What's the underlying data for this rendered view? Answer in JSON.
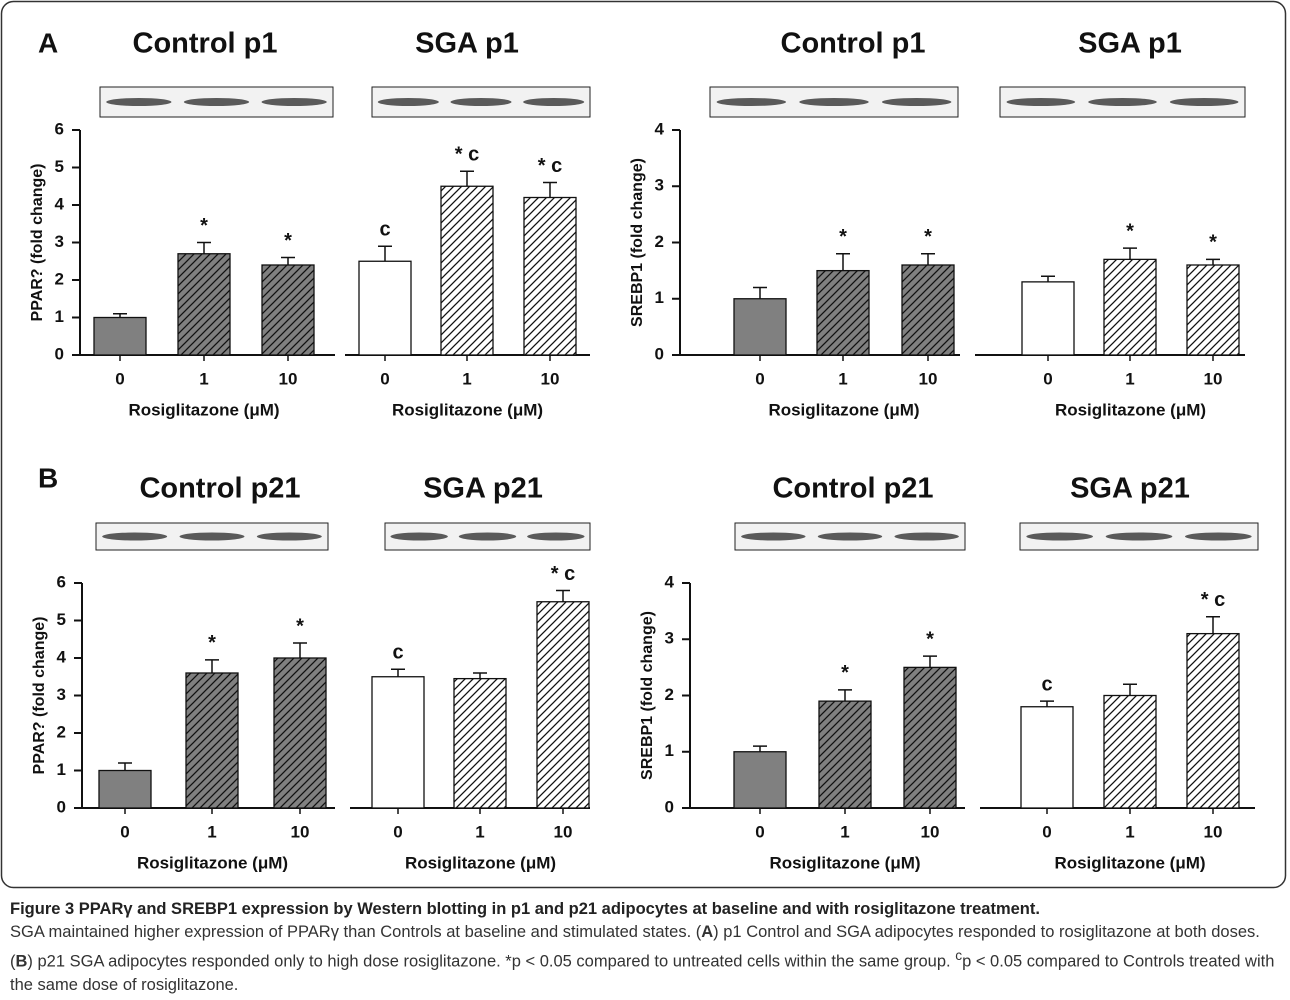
{
  "panels": [
    "A",
    "B"
  ],
  "chart_data": [
    {
      "type": "bar",
      "title": "Control p1",
      "ylabel": "PPAR? (fold change)",
      "xlabel": "Rosiglitazone (μM)",
      "categories": [
        "0",
        "1",
        "10"
      ],
      "values": [
        1.0,
        2.7,
        2.4
      ],
      "errors": [
        0.1,
        0.3,
        0.2
      ],
      "annotations": [
        null,
        "*",
        "*"
      ],
      "colors": [
        "#808080",
        "#808080",
        "#808080"
      ],
      "hatch": [
        false,
        true,
        true
      ],
      "ylim": [
        0,
        6
      ],
      "yticks": [
        0,
        1,
        2,
        3,
        4,
        5,
        6
      ]
    },
    {
      "type": "bar",
      "title": "SGA p1",
      "xlabel": "Rosiglitazone (μM)",
      "categories": [
        "0",
        "1",
        "10"
      ],
      "values": [
        2.5,
        4.5,
        4.2
      ],
      "errors": [
        0.4,
        0.4,
        0.4
      ],
      "annotations": [
        "c",
        "* c",
        "* c"
      ],
      "colors": [
        "#ffffff",
        "#ffffff",
        "#ffffff"
      ],
      "hatch": [
        false,
        true,
        true
      ],
      "ylim": [
        0,
        6
      ]
    },
    {
      "type": "bar",
      "title": "Control p1",
      "ylabel": "SREBP1 (fold change)",
      "xlabel": "Rosiglitazone (μM)",
      "categories": [
        "0",
        "1",
        "10"
      ],
      "values": [
        1.0,
        1.5,
        1.6
      ],
      "errors": [
        0.2,
        0.3,
        0.2
      ],
      "annotations": [
        null,
        "*",
        "*"
      ],
      "colors": [
        "#808080",
        "#808080",
        "#808080"
      ],
      "hatch": [
        false,
        true,
        true
      ],
      "ylim": [
        0,
        4
      ],
      "yticks": [
        0,
        1,
        2,
        3,
        4
      ]
    },
    {
      "type": "bar",
      "title": "SGA p1",
      "xlabel": "Rosiglitazone (μM)",
      "categories": [
        "0",
        "1",
        "10"
      ],
      "values": [
        1.3,
        1.7,
        1.6
      ],
      "errors": [
        0.1,
        0.2,
        0.1
      ],
      "annotations": [
        null,
        "*",
        "*"
      ],
      "colors": [
        "#ffffff",
        "#ffffff",
        "#ffffff"
      ],
      "hatch": [
        false,
        true,
        true
      ],
      "ylim": [
        0,
        4
      ]
    },
    {
      "type": "bar",
      "title": "Control p21",
      "ylabel": "PPAR? (fold change)",
      "xlabel": "Rosiglitazone (μM)",
      "categories": [
        "0",
        "1",
        "10"
      ],
      "values": [
        1.0,
        3.6,
        4.0
      ],
      "errors": [
        0.2,
        0.35,
        0.4
      ],
      "annotations": [
        null,
        "*",
        "*"
      ],
      "colors": [
        "#808080",
        "#808080",
        "#808080"
      ],
      "hatch": [
        false,
        true,
        true
      ],
      "ylim": [
        0,
        6
      ],
      "yticks": [
        0,
        1,
        2,
        3,
        4,
        5,
        6
      ]
    },
    {
      "type": "bar",
      "title": "SGA p21",
      "xlabel": "Rosiglitazone (μM)",
      "categories": [
        "0",
        "1",
        "10"
      ],
      "values": [
        3.5,
        3.45,
        5.5
      ],
      "errors": [
        0.2,
        0.15,
        0.3
      ],
      "annotations": [
        "c",
        null,
        "* c"
      ],
      "colors": [
        "#ffffff",
        "#ffffff",
        "#ffffff"
      ],
      "hatch": [
        false,
        true,
        true
      ],
      "ylim": [
        0,
        6
      ]
    },
    {
      "type": "bar",
      "title": "Control p21",
      "ylabel": "SREBP1 (fold change)",
      "xlabel": "Rosiglitazone (μM)",
      "categories": [
        "0",
        "1",
        "10"
      ],
      "values": [
        1.0,
        1.9,
        2.5
      ],
      "errors": [
        0.1,
        0.2,
        0.2
      ],
      "annotations": [
        null,
        "*",
        "*"
      ],
      "colors": [
        "#808080",
        "#808080",
        "#808080"
      ],
      "hatch": [
        false,
        true,
        true
      ],
      "ylim": [
        0,
        4
      ],
      "yticks": [
        0,
        1,
        2,
        3,
        4
      ]
    },
    {
      "type": "bar",
      "title": "SGA p21",
      "xlabel": "Rosiglitazone (μM)",
      "categories": [
        "0",
        "1",
        "10"
      ],
      "values": [
        1.8,
        2.0,
        3.1
      ],
      "errors": [
        0.1,
        0.2,
        0.3
      ],
      "annotations": [
        "c",
        null,
        "* c"
      ],
      "colors": [
        "#ffffff",
        "#ffffff",
        "#ffffff"
      ],
      "hatch": [
        false,
        true,
        true
      ],
      "ylim": [
        0,
        4
      ]
    }
  ],
  "caption": {
    "title": "Figure 3 PPARγ and SREBP1 expression by Western blotting in p1 and p21 adipocytes at baseline and with rosiglitazone treatment.",
    "body": [
      {
        "text": "SGA maintained higher expression of PPARγ than Controls at baseline and stimulated states. ("
      },
      {
        "text": "A",
        "style": "bold"
      },
      {
        "text": ") p1 Control and SGA adipocytes responded to rosiglitazone at both doses. ("
      },
      {
        "text": "B",
        "style": "bold"
      },
      {
        "text": ") p21 SGA adipocytes responded only to high dose rosiglitazone. *p < 0.05 compared to untreated cells within the same group. "
      },
      {
        "text": "c",
        "style": "sup"
      },
      {
        "text": "p < 0.05 compared to Controls treated with the same dose of rosiglitazone."
      }
    ]
  }
}
